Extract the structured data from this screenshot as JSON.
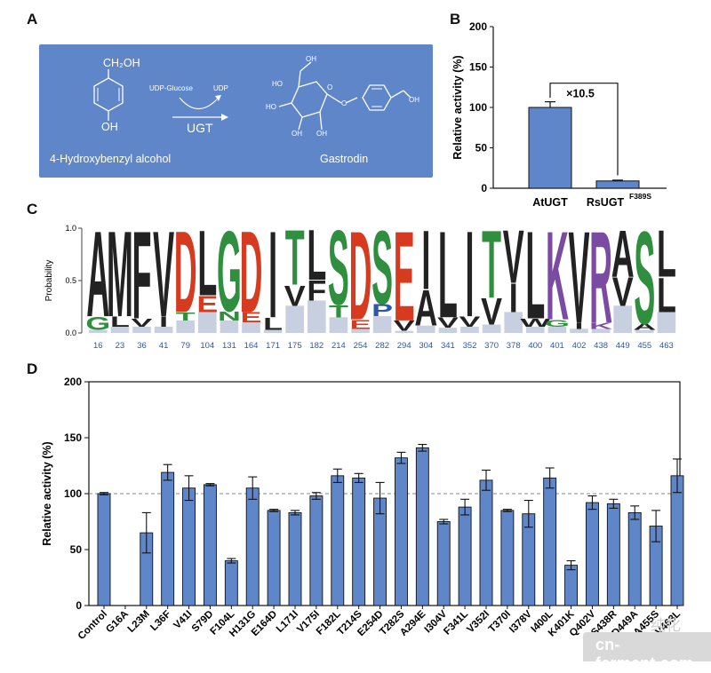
{
  "panels": {
    "a": "A",
    "b": "B",
    "c": "C",
    "d": "D"
  },
  "panelA": {
    "substrate_group": "CH₂OH",
    "substrate_oh": "OH",
    "cofactor_in": "UDP-Glucose",
    "cofactor_out": "UDP",
    "enzyme": "UGT",
    "substrate_name": "4-Hydroxybenzyl alcohol",
    "product_name": "Gastrodin",
    "product_ho1": "HO",
    "product_ho2": "HO",
    "product_oh3": "OH",
    "product_oh4": "OH",
    "product_o": "O",
    "product_o2": "O",
    "product_oh5": "OH",
    "product_oh6": "OH"
  },
  "chart_data": [
    {
      "type": "bar",
      "id": "B",
      "title": "",
      "ylabel": "Relative activity (%)",
      "ylim": [
        0,
        200
      ],
      "yticks": [
        "0",
        "50",
        "100",
        "150",
        "200"
      ],
      "categories": [
        "AtUGT",
        "RsUGT"
      ],
      "category_superscripts": [
        "",
        "F389S"
      ],
      "values": [
        100,
        9
      ],
      "errors": [
        7,
        1
      ],
      "annotation": "×10.5"
    },
    {
      "type": "sequence-logo",
      "id": "C",
      "ylabel": "Probability",
      "yticks": [
        "0.0",
        "0.5",
        "1.0"
      ],
      "positions": [
        "16",
        "23",
        "36",
        "41",
        "79",
        "104",
        "131",
        "164",
        "171",
        "175",
        "182",
        "214",
        "254",
        "282",
        "294",
        "304",
        "341",
        "352",
        "370",
        "378",
        "400",
        "401",
        "402",
        "438",
        "449",
        "455",
        "463"
      ],
      "top_residues": [
        "A",
        "M",
        "F",
        "V",
        "D",
        "L",
        "G",
        "D",
        "I",
        "T",
        "L",
        "S",
        "D",
        "S",
        "E",
        "I",
        "L",
        "I",
        "T",
        "V",
        "L",
        "K",
        "V",
        "R",
        "A",
        "S",
        "L"
      ],
      "top_probabilities": [
        0.84,
        0.84,
        0.86,
        0.84,
        0.8,
        0.64,
        0.79,
        0.8,
        0.85,
        0.54,
        0.49,
        0.73,
        0.87,
        0.72,
        0.88,
        0.58,
        0.85,
        0.84,
        0.66,
        0.52,
        0.86,
        0.87,
        0.9,
        0.9,
        0.46,
        0.91,
        0.46
      ],
      "second_residues": [
        "G",
        "L",
        "V",
        "I",
        "T",
        "E",
        "N",
        "E",
        "L",
        "V",
        "F",
        "T",
        "E",
        "P",
        "V",
        "A",
        "V",
        "V",
        "V",
        "I",
        "W",
        "G",
        "I",
        "K",
        "V",
        "A",
        "L"
      ],
      "second_probabilities": [
        0.13,
        0.1,
        0.08,
        0.1,
        0.08,
        0.16,
        0.09,
        0.1,
        0.12,
        0.2,
        0.2,
        0.12,
        0.09,
        0.12,
        0.1,
        0.35,
        0.1,
        0.1,
        0.26,
        0.28,
        0.08,
        0.07,
        0.06,
        0.06,
        0.28,
        0.06,
        0.34
      ]
    },
    {
      "type": "bar",
      "id": "D",
      "title": "",
      "ylabel": "Relative activity (%)",
      "ylim": [
        0,
        200
      ],
      "yticks": [
        "0",
        "50",
        "100",
        "150",
        "200"
      ],
      "reference_line": 100,
      "categories": [
        "Control",
        "G16A",
        "L23M",
        "L36F",
        "V41I",
        "S79D",
        "F104L",
        "H131G",
        "E164D",
        "L171I",
        "V175I",
        "F182L",
        "T214S",
        "E254D",
        "T282S",
        "A294E",
        "I304V",
        "F341L",
        "V352I",
        "T370I",
        "I378V",
        "I400L",
        "K401K",
        "Q402V",
        "S438R",
        "D449A",
        "A455S",
        "V463L"
      ],
      "values": [
        100,
        0,
        65,
        119,
        105,
        108,
        40,
        105,
        85,
        83,
        98,
        116,
        114,
        96,
        132,
        141,
        75,
        88,
        112,
        85,
        82,
        114,
        36,
        92,
        91,
        83,
        71,
        116
      ],
      "errors": [
        1,
        0,
        18,
        7,
        11,
        1,
        2,
        10,
        1,
        2,
        3,
        6,
        4,
        14,
        5,
        3,
        2,
        7,
        9,
        1,
        12,
        9,
        4,
        6,
        4,
        6,
        14,
        15
      ]
    }
  ],
  "watermark": {
    "text": "cn-ferment.com",
    "cn": "纯化"
  }
}
